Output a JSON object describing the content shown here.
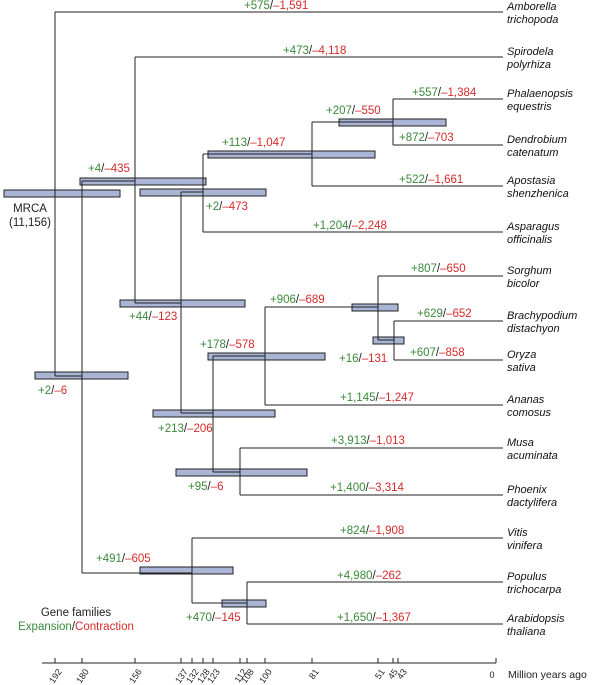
{
  "root_label": "MRCA",
  "root_count": "(11,156)",
  "legend": {
    "title": "Gene families",
    "expansion": "Expansion",
    "separator": "/",
    "contraction": "Contraction"
  },
  "axis": {
    "label": "Million years ago",
    "ticks": [
      "192",
      "180",
      "156",
      "137",
      "132",
      "128",
      "123",
      "112",
      "108",
      "100",
      "81",
      "51",
      "45",
      "43",
      "0"
    ]
  },
  "taxa": [
    {
      "id": "amborella",
      "genus": "Amborella",
      "species": "trichopoda",
      "gain": "+575",
      "loss": "–1,591"
    },
    {
      "id": "spirodela",
      "genus": "Spirodela",
      "species": "polyrhiza",
      "gain": "+473",
      "loss": "–4,118"
    },
    {
      "id": "phalaenopsis",
      "genus": "Phalaenopsis",
      "species": "equestris",
      "gain": "+557",
      "loss": "–1,384"
    },
    {
      "id": "dendrobium",
      "genus": "Dendrobium",
      "species": "catenatum",
      "gain": "+872",
      "loss": "–703"
    },
    {
      "id": "apostasia",
      "genus": "Apostasia",
      "species": "shenzhenica",
      "gain": "+522",
      "loss": "–1,661"
    },
    {
      "id": "asparagus",
      "genus": "Asparagus",
      "species": "officinalis",
      "gain": "+1,204",
      "loss": "–2,248"
    },
    {
      "id": "sorghum",
      "genus": "Sorghum",
      "species": "bicolor",
      "gain": "+807",
      "loss": "–650"
    },
    {
      "id": "brachypodium",
      "genus": "Brachypodium",
      "species": "distachyon",
      "gain": "+629",
      "loss": "–652"
    },
    {
      "id": "oryza",
      "genus": "Oryza",
      "species": "sativa",
      "gain": "+607",
      "loss": "–858"
    },
    {
      "id": "ananas",
      "genus": "Ananas",
      "species": "comosus",
      "gain": "+1,145",
      "loss": "–1,247"
    },
    {
      "id": "musa",
      "genus": "Musa",
      "species": "acuminata",
      "gain": "+3,913",
      "loss": "–1,013"
    },
    {
      "id": "phoenix",
      "genus": "Phoenix",
      "species": "dactylifera",
      "gain": "+1,400",
      "loss": "–3,314"
    },
    {
      "id": "vitis",
      "genus": "Vitis",
      "species": "vinifera",
      "gain": "+824",
      "loss": "–1,908"
    },
    {
      "id": "populus",
      "genus": "Populus",
      "species": "trichocarpa",
      "gain": "+4,980",
      "loss": "–262"
    },
    {
      "id": "arabidopsis",
      "genus": "Arabidopsis",
      "species": "thaliana",
      "gain": "+1,650",
      "loss": "–1,367"
    }
  ],
  "nodes": [
    {
      "id": "orchids_pd",
      "gain": "+207",
      "loss": "–550"
    },
    {
      "id": "orchids",
      "gain": "+113",
      "loss": "–1,047"
    },
    {
      "id": "asparagales",
      "gain": "+2",
      "loss": "–473"
    },
    {
      "id": "alismatales_asparagales",
      "gain": "+4",
      "loss": "–435"
    },
    {
      "id": "ba_or",
      "gain": "+16",
      "loss": "–131"
    },
    {
      "id": "grasses",
      "gain": "+906",
      "loss": "–689"
    },
    {
      "id": "poales",
      "gain": "+178",
      "loss": "–578"
    },
    {
      "id": "commelinids",
      "gain": "+213",
      "loss": "–206"
    },
    {
      "id": "musa_phoenix",
      "gain": "+95",
      "loss": "–6"
    },
    {
      "id": "monocots",
      "gain": "+44",
      "loss": "–123"
    },
    {
      "id": "mesangio",
      "gain": "+2",
      "loss": "–6"
    },
    {
      "id": "eudicots",
      "gain": "+491",
      "loss": "–605"
    },
    {
      "id": "rosids",
      "gain": "+470",
      "loss": "–145"
    }
  ]
}
